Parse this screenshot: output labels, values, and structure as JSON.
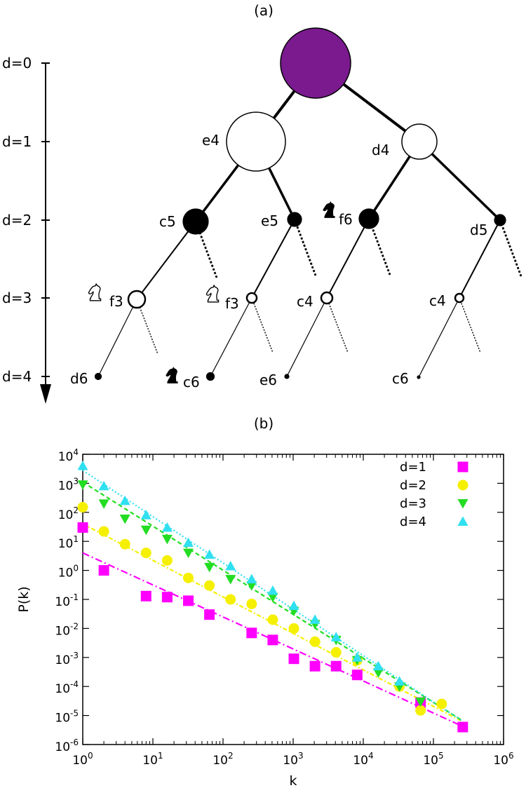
{
  "panel_a": {
    "label": "(a)",
    "depth_labels": [
      "d=0",
      "d=1",
      "d=2",
      "d=3",
      "d=4"
    ],
    "nodes": [
      {
        "id": "root",
        "label": "",
        "depth": 0,
        "fill": "#7a1a8e",
        "parent": ""
      },
      {
        "id": "e4",
        "label": "e4",
        "depth": 1,
        "fill": "#ffffff",
        "parent": "root"
      },
      {
        "id": "d4",
        "label": "d4",
        "depth": 1,
        "fill": "#ffffff",
        "parent": "root"
      },
      {
        "id": "c5",
        "label": "c5",
        "depth": 2,
        "fill": "#000000",
        "parent": "e4"
      },
      {
        "id": "e5",
        "label": "e5",
        "depth": 2,
        "fill": "#000000",
        "parent": "e4"
      },
      {
        "id": "nf6",
        "label": "f6",
        "depth": 2,
        "fill": "#000000",
        "parent": "d4",
        "piece": "black-knight"
      },
      {
        "id": "d5",
        "label": "d5",
        "depth": 2,
        "fill": "#000000",
        "parent": "d4"
      },
      {
        "id": "nf3a",
        "label": "f3",
        "depth": 3,
        "fill": "#ffffff",
        "parent": "c5",
        "piece": "white-knight"
      },
      {
        "id": "nf3b",
        "label": "f3",
        "depth": 3,
        "fill": "#ffffff",
        "parent": "e5",
        "piece": "white-knight"
      },
      {
        "id": "c4a",
        "label": "c4",
        "depth": 3,
        "fill": "#ffffff",
        "parent": "nf6"
      },
      {
        "id": "c4b",
        "label": "c4",
        "depth": 3,
        "fill": "#ffffff",
        "parent": "d5"
      },
      {
        "id": "d6",
        "label": "d6",
        "depth": 4,
        "fill": "#000000",
        "parent": "nf3a"
      },
      {
        "id": "nc6",
        "label": "c6",
        "depth": 4,
        "fill": "#000000",
        "parent": "nf3b",
        "piece": "black-knight"
      },
      {
        "id": "e6",
        "label": "e6",
        "depth": 4,
        "fill": "#000000",
        "parent": "c4a"
      },
      {
        "id": "c6",
        "label": "c6",
        "depth": 4,
        "fill": "#000000",
        "parent": "c4b"
      }
    ]
  },
  "chart_data": {
    "type": "scatter",
    "panel_label": "(b)",
    "title": "",
    "xlabel": "k",
    "ylabel": "P(k)",
    "x_scale": "log",
    "y_scale": "log",
    "xlim": [
      1,
      1000000
    ],
    "ylim": [
      1e-06,
      10000
    ],
    "x_ticks": [
      {
        "base": "10",
        "exp": "0",
        "value": 1
      },
      {
        "base": "10",
        "exp": "1",
        "value": 10
      },
      {
        "base": "10",
        "exp": "2",
        "value": 100
      },
      {
        "base": "10",
        "exp": "3",
        "value": 1000
      },
      {
        "base": "10",
        "exp": "4",
        "value": 10000
      },
      {
        "base": "10",
        "exp": "5",
        "value": 100000
      },
      {
        "base": "10",
        "exp": "6",
        "value": 1000000
      }
    ],
    "y_ticks": [
      {
        "base": "10",
        "exp": "-6",
        "value": 1e-06
      },
      {
        "base": "10",
        "exp": "-5",
        "value": 1e-05
      },
      {
        "base": "10",
        "exp": "-4",
        "value": 0.0001
      },
      {
        "base": "10",
        "exp": "-3",
        "value": 0.001
      },
      {
        "base": "10",
        "exp": "-2",
        "value": 0.01
      },
      {
        "base": "10",
        "exp": "-1",
        "value": 0.1
      },
      {
        "base": "10",
        "exp": "0",
        "value": 1
      },
      {
        "base": "10",
        "exp": "1",
        "value": 10
      },
      {
        "base": "10",
        "exp": "2",
        "value": 100
      },
      {
        "base": "10",
        "exp": "3",
        "value": 1000
      },
      {
        "base": "10",
        "exp": "4",
        "value": 10000
      }
    ],
    "grid": false,
    "legend_position": "top-right",
    "series": [
      {
        "name": "d=1",
        "marker": "square",
        "color": "#ff00ff",
        "x": [
          1,
          2,
          8,
          16,
          32,
          64,
          256,
          512,
          1024,
          2048,
          4096,
          8192,
          65536,
          262144
        ],
        "y": [
          30,
          1.0,
          0.13,
          0.12,
          0.09,
          0.03,
          0.007,
          0.004,
          0.0009,
          0.0005,
          0.0005,
          0.00025,
          2.8e-05,
          4e-06
        ],
        "fit": {
          "x": [
            1,
            262144
          ],
          "y": [
            4.0,
            4.2e-06
          ],
          "dash": "10 4 2 4"
        }
      },
      {
        "name": "d=2",
        "marker": "circle",
        "color": "#f5f000",
        "x": [
          1,
          2,
          4,
          8,
          16,
          32,
          64,
          128,
          256,
          512,
          1024,
          2048,
          4096,
          8192,
          32768,
          65536,
          131072
        ],
        "y": [
          150,
          22,
          8,
          4,
          2.2,
          0.55,
          0.3,
          0.1,
          0.07,
          0.02,
          0.01,
          0.0035,
          0.0015,
          0.0008,
          0.0001,
          1.5e-05,
          2.5e-05
        ],
        "fit": {
          "x": [
            1,
            250000
          ],
          "y": [
            40,
            6.5e-06
          ],
          "dash": "6 3 2 3"
        }
      },
      {
        "name": "d=3",
        "marker": "triangle-down",
        "color": "#22dd22",
        "x": [
          1,
          2,
          4,
          8,
          16,
          32,
          64,
          128,
          256,
          512,
          1024,
          2048,
          4096,
          8192,
          16384,
          32768,
          65536
        ],
        "y": [
          900,
          200,
          60,
          25,
          12,
          4,
          1.3,
          0.5,
          0.3,
          0.12,
          0.04,
          0.014,
          0.004,
          0.0008,
          0.0003,
          0.0001,
          3e-05
        ],
        "fit": {
          "x": [
            1,
            250000
          ],
          "y": [
            1100,
            7e-06
          ],
          "dash": "6 4"
        }
      },
      {
        "name": "d=4",
        "marker": "triangle-up",
        "color": "#30e0f0",
        "x": [
          1,
          2,
          4,
          8,
          16,
          32,
          64,
          128,
          256,
          512,
          1024,
          2048,
          4096,
          8192,
          16384,
          32768
        ],
        "y": [
          4000,
          800,
          250,
          80,
          30,
          9,
          3.5,
          1.4,
          0.5,
          0.2,
          0.06,
          0.02,
          0.005,
          0.001,
          0.0005,
          0.00015
        ],
        "fit": {
          "x": [
            1,
            250000
          ],
          "y": [
            2800,
            6.8e-06
          ],
          "dash": "2 3"
        }
      }
    ]
  }
}
